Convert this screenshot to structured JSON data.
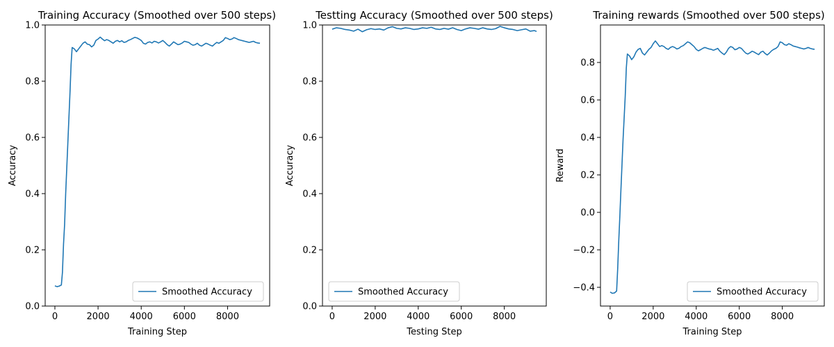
{
  "chart_data": [
    {
      "type": "line",
      "title": "Training Accuracy (Smoothed over 500 steps)",
      "xlabel": "Training Step",
      "ylabel": "Accuracy",
      "xlim": [
        -450,
        9950
      ],
      "ylim": [
        0,
        1.0
      ],
      "xticks": [
        0,
        2000,
        4000,
        6000,
        8000
      ],
      "xtick_labels": [
        "0",
        "2000",
        "4000",
        "6000",
        "8000"
      ],
      "yticks": [
        0,
        0.2,
        0.4,
        0.6,
        0.8,
        1.0
      ],
      "ytick_labels": [
        "0.0",
        "0.2",
        "0.4",
        "0.6",
        "0.8",
        "1.0"
      ],
      "legend": "lower right",
      "grid": false,
      "color": "#1f77b4",
      "series": [
        {
          "name": "Smoothed Accuracy",
          "x": [
            0,
            100,
            200,
            300,
            350,
            400,
            450,
            500,
            600,
            700,
            750,
            800,
            900,
            1000,
            1100,
            1200,
            1300,
            1400,
            1500,
            1600,
            1700,
            1800,
            1900,
            2000,
            2100,
            2200,
            2300,
            2400,
            2500,
            2600,
            2700,
            2800,
            2900,
            3000,
            3100,
            3200,
            3300,
            3400,
            3500,
            3600,
            3700,
            3800,
            3900,
            4000,
            4100,
            4200,
            4300,
            4400,
            4500,
            4600,
            4700,
            4800,
            4900,
            5000,
            5100,
            5200,
            5300,
            5400,
            5500,
            5600,
            5700,
            5800,
            5900,
            6000,
            6100,
            6200,
            6300,
            6400,
            6500,
            6600,
            6700,
            6800,
            6900,
            7000,
            7100,
            7200,
            7300,
            7400,
            7500,
            7600,
            7700,
            7800,
            7900,
            8000,
            8100,
            8200,
            8300,
            8400,
            8500,
            8600,
            8700,
            8800,
            8900,
            9000,
            9100,
            9200,
            9300,
            9400,
            9500
          ],
          "y": [
            0.072,
            0.069,
            0.071,
            0.075,
            0.12,
            0.22,
            0.29,
            0.4,
            0.58,
            0.76,
            0.86,
            0.92,
            0.915,
            0.905,
            0.915,
            0.925,
            0.935,
            0.94,
            0.932,
            0.93,
            0.922,
            0.928,
            0.945,
            0.95,
            0.957,
            0.95,
            0.944,
            0.948,
            0.945,
            0.94,
            0.935,
            0.942,
            0.945,
            0.94,
            0.944,
            0.938,
            0.94,
            0.945,
            0.948,
            0.952,
            0.956,
            0.954,
            0.95,
            0.945,
            0.935,
            0.932,
            0.938,
            0.94,
            0.936,
            0.942,
            0.94,
            0.936,
            0.94,
            0.945,
            0.938,
            0.93,
            0.925,
            0.932,
            0.94,
            0.935,
            0.93,
            0.932,
            0.936,
            0.942,
            0.94,
            0.938,
            0.932,
            0.928,
            0.93,
            0.935,
            0.928,
            0.925,
            0.93,
            0.935,
            0.932,
            0.928,
            0.925,
            0.932,
            0.938,
            0.935,
            0.94,
            0.945,
            0.955,
            0.952,
            0.948,
            0.95,
            0.955,
            0.952,
            0.948,
            0.946,
            0.944,
            0.942,
            0.94,
            0.938,
            0.94,
            0.942,
            0.938,
            0.936,
            0.935
          ]
        }
      ]
    },
    {
      "type": "line",
      "title": "Testting Accuracy (Smoothed over 500 steps)",
      "xlabel": "Testing Step",
      "ylabel": "Accuracy",
      "xlim": [
        -450,
        9950
      ],
      "ylim": [
        0,
        1.0
      ],
      "xticks": [
        0,
        2000,
        4000,
        6000,
        8000
      ],
      "xtick_labels": [
        "0",
        "2000",
        "4000",
        "6000",
        "8000"
      ],
      "yticks": [
        0,
        0.2,
        0.4,
        0.6,
        0.8,
        1.0
      ],
      "ytick_labels": [
        "0.0",
        "0.2",
        "0.4",
        "0.6",
        "0.8",
        "1.0"
      ],
      "legend": "lower left",
      "grid": false,
      "color": "#1f77b4",
      "series": [
        {
          "name": "Smoothed Accuracy",
          "x": [
            0,
            200,
            400,
            600,
            800,
            1000,
            1200,
            1400,
            1600,
            1800,
            2000,
            2200,
            2400,
            2600,
            2800,
            3000,
            3200,
            3400,
            3600,
            3800,
            4000,
            4200,
            4400,
            4600,
            4800,
            5000,
            5200,
            5400,
            5600,
            5800,
            6000,
            6200,
            6400,
            6600,
            6800,
            7000,
            7200,
            7400,
            7600,
            7800,
            8000,
            8200,
            8400,
            8600,
            8800,
            9000,
            9200,
            9400,
            9500
          ],
          "y": [
            0.985,
            0.99,
            0.988,
            0.984,
            0.982,
            0.978,
            0.985,
            0.976,
            0.983,
            0.987,
            0.984,
            0.986,
            0.982,
            0.99,
            0.994,
            0.988,
            0.986,
            0.99,
            0.988,
            0.984,
            0.986,
            0.99,
            0.988,
            0.992,
            0.986,
            0.984,
            0.988,
            0.985,
            0.99,
            0.984,
            0.98,
            0.986,
            0.99,
            0.988,
            0.985,
            0.99,
            0.986,
            0.984,
            0.987,
            0.995,
            0.99,
            0.986,
            0.984,
            0.98,
            0.983,
            0.986,
            0.978,
            0.98,
            0.977
          ]
        }
      ]
    },
    {
      "type": "line",
      "title": "Training rewards (Smoothed over 500 steps)",
      "xlabel": "Training Step",
      "ylabel": "Reward",
      "xlim": [
        -450,
        9950
      ],
      "ylim": [
        -0.5,
        1.0
      ],
      "xticks": [
        0,
        2000,
        4000,
        6000,
        8000
      ],
      "xtick_labels": [
        "0",
        "2000",
        "4000",
        "6000",
        "8000"
      ],
      "yticks": [
        -0.4,
        -0.2,
        0.0,
        0.2,
        0.4,
        0.6,
        0.8
      ],
      "ytick_labels": [
        "−0.4",
        "−0.2",
        "0.0",
        "0.2",
        "0.4",
        "0.6",
        "0.8"
      ],
      "legend": "lower right",
      "grid": false,
      "color": "#1f77b4",
      "series": [
        {
          "name": "Smoothed Accuracy",
          "x": [
            0,
            100,
            200,
            300,
            350,
            400,
            450,
            500,
            600,
            700,
            750,
            800,
            900,
            1000,
            1100,
            1200,
            1300,
            1400,
            1500,
            1600,
            1700,
            1800,
            1900,
            2000,
            2100,
            2200,
            2300,
            2400,
            2500,
            2600,
            2700,
            2800,
            2900,
            3000,
            3100,
            3200,
            3300,
            3400,
            3500,
            3600,
            3700,
            3800,
            3900,
            4000,
            4100,
            4200,
            4300,
            4400,
            4500,
            4600,
            4700,
            4800,
            4900,
            5000,
            5100,
            5200,
            5300,
            5400,
            5500,
            5600,
            5700,
            5800,
            5900,
            6000,
            6100,
            6200,
            6300,
            6400,
            6500,
            6600,
            6700,
            6800,
            6900,
            7000,
            7100,
            7200,
            7300,
            7400,
            7500,
            7600,
            7700,
            7800,
            7900,
            8000,
            8100,
            8200,
            8300,
            8400,
            8500,
            8600,
            8700,
            8800,
            8900,
            9000,
            9100,
            9200,
            9300,
            9400,
            9500
          ],
          "y": [
            -0.425,
            -0.432,
            -0.43,
            -0.42,
            -0.3,
            -0.15,
            -0.02,
            0.12,
            0.39,
            0.62,
            0.77,
            0.845,
            0.835,
            0.815,
            0.83,
            0.855,
            0.87,
            0.875,
            0.85,
            0.84,
            0.855,
            0.87,
            0.88,
            0.9,
            0.915,
            0.9,
            0.885,
            0.89,
            0.885,
            0.875,
            0.87,
            0.88,
            0.885,
            0.88,
            0.872,
            0.876,
            0.885,
            0.89,
            0.9,
            0.91,
            0.905,
            0.895,
            0.885,
            0.87,
            0.862,
            0.868,
            0.875,
            0.88,
            0.876,
            0.872,
            0.87,
            0.865,
            0.87,
            0.875,
            0.86,
            0.85,
            0.842,
            0.855,
            0.875,
            0.885,
            0.88,
            0.868,
            0.872,
            0.88,
            0.875,
            0.862,
            0.85,
            0.845,
            0.852,
            0.86,
            0.855,
            0.848,
            0.842,
            0.855,
            0.86,
            0.848,
            0.84,
            0.85,
            0.862,
            0.87,
            0.875,
            0.885,
            0.91,
            0.905,
            0.895,
            0.892,
            0.9,
            0.895,
            0.888,
            0.885,
            0.882,
            0.878,
            0.875,
            0.872,
            0.875,
            0.88,
            0.875,
            0.872,
            0.87
          ]
        }
      ]
    }
  ]
}
